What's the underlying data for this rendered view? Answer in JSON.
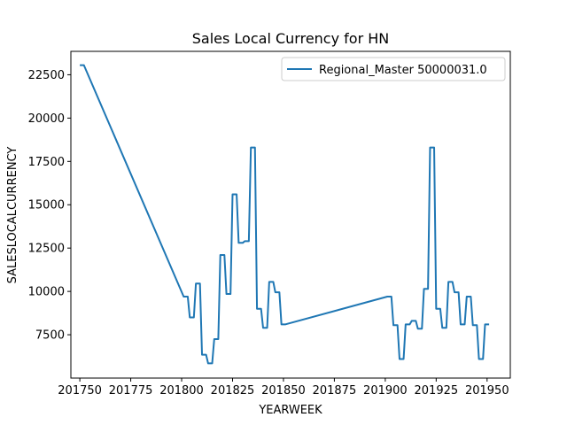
{
  "chart_data": {
    "type": "line",
    "title": "Sales Local Currency for HN",
    "xlabel": "YEARWEEK",
    "ylabel": "SALESLOCALCURRENCY",
    "xlim": [
      201745.6,
      201961.4
    ],
    "ylim": [
      5000,
      23850
    ],
    "xticks": [
      201750,
      201775,
      201800,
      201825,
      201850,
      201875,
      201900,
      201925,
      201950
    ],
    "xtick_labels": [
      "201750",
      "201775",
      "201800",
      "201825",
      "201850",
      "201875",
      "201900",
      "201925",
      "201950"
    ],
    "yticks": [
      7500,
      10000,
      12500,
      15000,
      17500,
      20000,
      22500
    ],
    "ytick_labels": [
      "7500",
      "10000",
      "12500",
      "15000",
      "17500",
      "20000",
      "22500"
    ],
    "grid": false,
    "legend_position": "top-right",
    "series": [
      {
        "name": "Regional_Master 50000031.0",
        "color": "#1f77b4",
        "x": [
          201750,
          201752,
          201801,
          201803,
          201804,
          201806,
          201807,
          201809,
          201810,
          201812,
          201813,
          201815,
          201816,
          201818,
          201819,
          201821,
          201822,
          201824,
          201825,
          201827,
          201828,
          201830,
          201831,
          201833,
          201834,
          201836,
          201837,
          201839,
          201840,
          201842,
          201843,
          201845,
          201846,
          201848,
          201849,
          201851,
          201901,
          201903,
          201904,
          201906,
          201907,
          201909,
          201910,
          201912,
          201913,
          201915,
          201916,
          201918,
          201919,
          201921,
          201922,
          201924,
          201925,
          201927,
          201928,
          201930,
          201931,
          201933,
          201934,
          201936,
          201937,
          201939,
          201940,
          201942,
          201943,
          201945,
          201946,
          201948,
          201949,
          201951
        ],
        "y": [
          23050,
          23050,
          9700,
          9700,
          8500,
          8500,
          10450,
          10450,
          6350,
          6350,
          5850,
          5850,
          7250,
          7250,
          12100,
          12100,
          9850,
          9850,
          15600,
          15600,
          12800,
          12800,
          12900,
          12900,
          18300,
          18300,
          9000,
          9000,
          7900,
          7900,
          10550,
          10550,
          9950,
          9950,
          8100,
          8100,
          9700,
          9700,
          8050,
          8050,
          6100,
          6100,
          8100,
          8100,
          8300,
          8300,
          7850,
          7850,
          10150,
          10150,
          18300,
          18300,
          9000,
          9000,
          7900,
          7900,
          10550,
          10550,
          9950,
          9950,
          8100,
          8100,
          9700,
          9700,
          8050,
          8050,
          6100,
          6100,
          8100,
          8100
        ]
      }
    ]
  }
}
